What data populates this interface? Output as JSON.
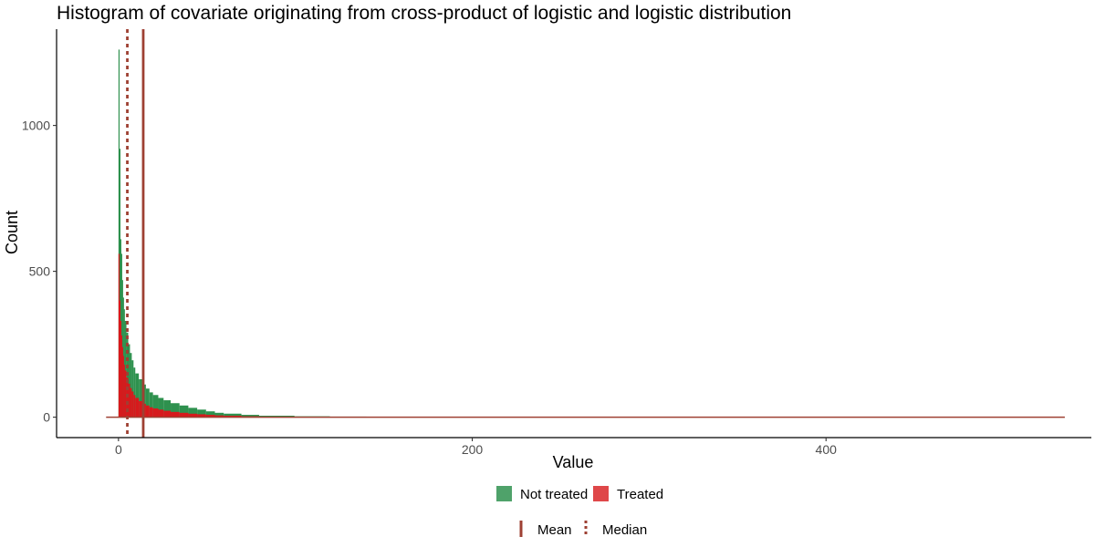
{
  "chart_data": {
    "type": "histogram",
    "title": "Histogram of covariate originating from cross-product of logistic and logistic distribution",
    "xlabel": "Value",
    "ylabel": "Count",
    "xlim": [
      -35,
      550
    ],
    "ylim": [
      -70,
      1330
    ],
    "x_ticks": [
      0,
      200,
      400
    ],
    "y_ticks": [
      0,
      500,
      1000
    ],
    "grid": false,
    "legend_position": "bottom",
    "x_range_of_data": [
      0,
      535
    ],
    "series": [
      {
        "name": "Not treated",
        "color": "#238B45",
        "x": [
          0.5,
          1,
          1.5,
          2,
          2.5,
          3,
          3.5,
          4,
          5,
          6,
          7,
          8,
          9,
          10,
          12,
          14,
          16,
          18,
          20,
          23,
          26,
          30,
          35,
          40,
          45,
          50,
          55,
          60,
          70,
          80,
          100,
          120,
          150,
          200,
          300,
          400,
          500,
          535
        ],
        "values": [
          1260,
          920,
          610,
          560,
          470,
          410,
          370,
          330,
          290,
          250,
          220,
          195,
          170,
          150,
          130,
          112,
          98,
          85,
          76,
          66,
          58,
          48,
          40,
          32,
          26,
          20,
          15,
          12,
          8,
          5,
          3,
          2,
          1,
          0,
          0,
          0,
          0,
          0
        ]
      },
      {
        "name": "Treated",
        "color": "#D7191C",
        "x": [
          0.5,
          1,
          1.5,
          2,
          2.5,
          3,
          3.5,
          4,
          5,
          6,
          7,
          8,
          9,
          10,
          12,
          14,
          16,
          18,
          20,
          23,
          26,
          30,
          35,
          40,
          45,
          50,
          55,
          60,
          70,
          80,
          100,
          120,
          150,
          200,
          300,
          400,
          500,
          535
        ],
        "values": [
          560,
          400,
          330,
          280,
          240,
          210,
          180,
          160,
          135,
          115,
          100,
          88,
          76,
          66,
          55,
          46,
          40,
          34,
          30,
          26,
          22,
          18,
          15,
          12,
          10,
          8,
          6,
          5,
          3,
          2,
          1,
          1,
          0,
          0,
          0,
          0,
          0,
          0
        ]
      }
    ],
    "reference_lines": [
      {
        "name": "Mean",
        "value": 14,
        "style": "solid",
        "color": "#9E4033"
      },
      {
        "name": "Median",
        "value": 5,
        "style": "dotted",
        "color": "#9E4033"
      }
    ]
  },
  "legend": {
    "fill_items": [
      {
        "label": "Not treated",
        "color": "#238B45"
      },
      {
        "label": "Treated",
        "color": "#D7191C"
      }
    ],
    "line_items": [
      {
        "label": "Mean",
        "style": "solid",
        "color": "#9E4033"
      },
      {
        "label": "Median",
        "style": "dotted",
        "color": "#9E4033"
      }
    ]
  }
}
